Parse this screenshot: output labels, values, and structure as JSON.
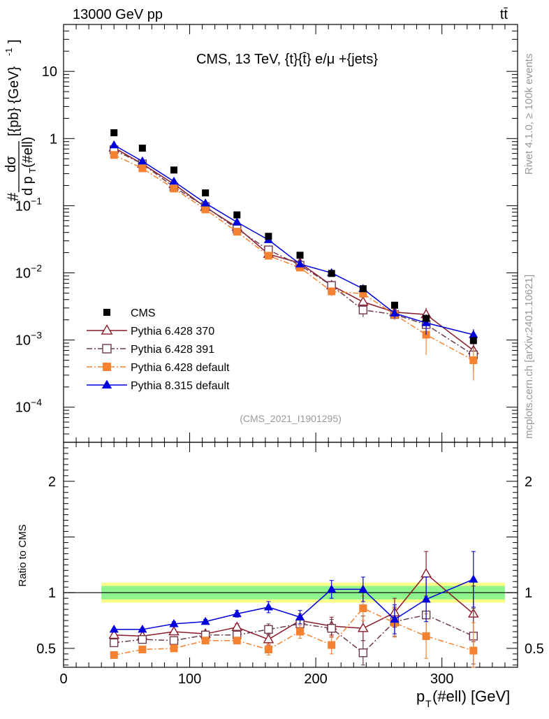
{
  "header": {
    "left_label": "13000 GeV pp",
    "right_label": "tt̄"
  },
  "side_labels": {
    "rivet": "Rivet 4.1.0, ≥ 100k events",
    "mcplots": "mcplots.cern.ch [arXiv:2401.10621]"
  },
  "chart_data": {
    "type": "scatter",
    "title": "CMS, 13 TeV, {t}{t̄} e/μ +{jets}",
    "analysis_label": "(CMS_2021_I1901295)",
    "xlabel": "p_T(#ell) [GeV]",
    "ylabel_main": "d σ / d p_T(#ell) [{pb} {GeV}^-1]",
    "ylabel_ratio": "Ratio to CMS",
    "xlim": [
      0,
      360
    ],
    "ylim_main": [
      3e-05,
      50
    ],
    "ylim_ratio": [
      0.33,
      2.35
    ],
    "yscale_main": "log",
    "x_ticks": [
      0,
      100,
      200,
      300
    ],
    "y_ticks_main": [
      {
        "value": 0.0001,
        "mant": "10",
        "exp": "−4"
      },
      {
        "value": 0.001,
        "mant": "10",
        "exp": "−3"
      },
      {
        "value": 0.01,
        "mant": "10",
        "exp": "−2"
      },
      {
        "value": 0.1,
        "mant": "10",
        "exp": "−1"
      },
      {
        "value": 1,
        "mant": "1",
        "exp": ""
      },
      {
        "value": 10,
        "mant": "10",
        "exp": ""
      }
    ],
    "y_ticks_ratio": [
      0.5,
      1,
      2
    ],
    "x": [
      40,
      62.5,
      87.5,
      112.5,
      137.5,
      162.5,
      187.5,
      212.5,
      237.5,
      262.5,
      287.5,
      325
    ],
    "band_x_range": [
      30,
      350
    ],
    "band_inner": [
      0.94,
      1.06
    ],
    "band_outer": [
      0.91,
      1.09
    ],
    "legend_position": "lower-left",
    "legend": [
      "CMS",
      "Pythia 6.428 370",
      "Pythia 6.428 391",
      "Pythia 6.428 default",
      "Pythia 8.315 default"
    ],
    "series": [
      {
        "name": "CMS",
        "color": "#000000",
        "marker": "square-filled",
        "line": "none",
        "values": [
          1.22,
          0.72,
          0.34,
          0.155,
          0.073,
          0.035,
          0.0183,
          0.0098,
          0.0058,
          0.0033,
          0.0021,
          0.00098
        ]
      },
      {
        "name": "Pythia 6.428 370",
        "color": "#8b1a2a",
        "marker": "triangle-open",
        "line": "solid",
        "values": [
          0.73,
          0.42,
          0.21,
          0.095,
          0.048,
          0.019,
          0.014,
          0.0065,
          0.0037,
          0.0026,
          0.0024,
          0.0007
        ],
        "errors": [
          0.01,
          0.01,
          0.005,
          0.003,
          0.002,
          0.0015,
          0.0012,
          0.0008,
          0.0006,
          0.0004,
          0.0006,
          0.00025
        ],
        "ratio": [
          0.62,
          0.61,
          0.65,
          0.63,
          0.69,
          0.58,
          0.75,
          0.7,
          0.68,
          0.82,
          1.17,
          0.81
        ],
        "ratio_err": [
          0.01,
          0.01,
          0.02,
          0.02,
          0.03,
          0.05,
          0.06,
          0.08,
          0.11,
          0.13,
          0.2,
          0.25
        ]
      },
      {
        "name": "Pythia 6.428 391",
        "color": "#6b3a4b",
        "marker": "square-open",
        "line": "dashdot",
        "values": [
          0.68,
          0.42,
          0.19,
          0.097,
          0.045,
          0.022,
          0.013,
          0.0065,
          0.0028,
          0.0024,
          0.0017,
          0.0006
        ],
        "errors": [
          0.01,
          0.01,
          0.005,
          0.003,
          0.002,
          0.0015,
          0.0012,
          0.0008,
          0.0006,
          0.0004,
          0.0006,
          0.00025
        ],
        "ratio": [
          0.55,
          0.58,
          0.57,
          0.62,
          0.62,
          0.67,
          0.72,
          0.68,
          0.46,
          0.74,
          0.8,
          0.61
        ],
        "ratio_err": [
          0.01,
          0.01,
          0.02,
          0.02,
          0.03,
          0.05,
          0.06,
          0.08,
          0.11,
          0.13,
          0.2,
          0.25
        ]
      },
      {
        "name": "Pythia 6.428 default",
        "color": "#f58231",
        "marker": "square-filled",
        "line": "dashdot",
        "values": [
          0.57,
          0.36,
          0.18,
          0.088,
          0.041,
          0.018,
          0.012,
          0.0053,
          0.0049,
          0.0024,
          0.0012,
          0.0005
        ],
        "errors": [
          0.01,
          0.01,
          0.005,
          0.003,
          0.002,
          0.0015,
          0.0012,
          0.0008,
          0.0006,
          0.0004,
          0.0006,
          0.00025
        ],
        "ratio": [
          0.44,
          0.49,
          0.5,
          0.57,
          0.57,
          0.49,
          0.65,
          0.53,
          0.86,
          0.73,
          0.61,
          0.48
        ],
        "ratio_err": [
          0.01,
          0.01,
          0.02,
          0.02,
          0.03,
          0.05,
          0.06,
          0.08,
          0.11,
          0.13,
          0.2,
          0.25
        ]
      },
      {
        "name": "Pythia 8.315 default",
        "color": "#0000dd",
        "marker": "triangle-filled",
        "line": "solid",
        "values": [
          0.8,
          0.46,
          0.23,
          0.109,
          0.057,
          0.031,
          0.0135,
          0.01,
          0.0058,
          0.0025,
          0.0018,
          0.0012
        ],
        "errors": [
          0.01,
          0.01,
          0.005,
          0.003,
          0.002,
          0.0015,
          0.0012,
          0.0008,
          0.0006,
          0.0004,
          0.0006,
          0.00025
        ],
        "ratio": [
          0.67,
          0.67,
          0.72,
          0.74,
          0.81,
          0.87,
          0.78,
          1.03,
          1.03,
          0.76,
          0.94,
          1.12
        ],
        "ratio_err": [
          0.01,
          0.01,
          0.02,
          0.02,
          0.03,
          0.05,
          0.06,
          0.08,
          0.11,
          0.13,
          0.2,
          0.25
        ]
      }
    ]
  }
}
